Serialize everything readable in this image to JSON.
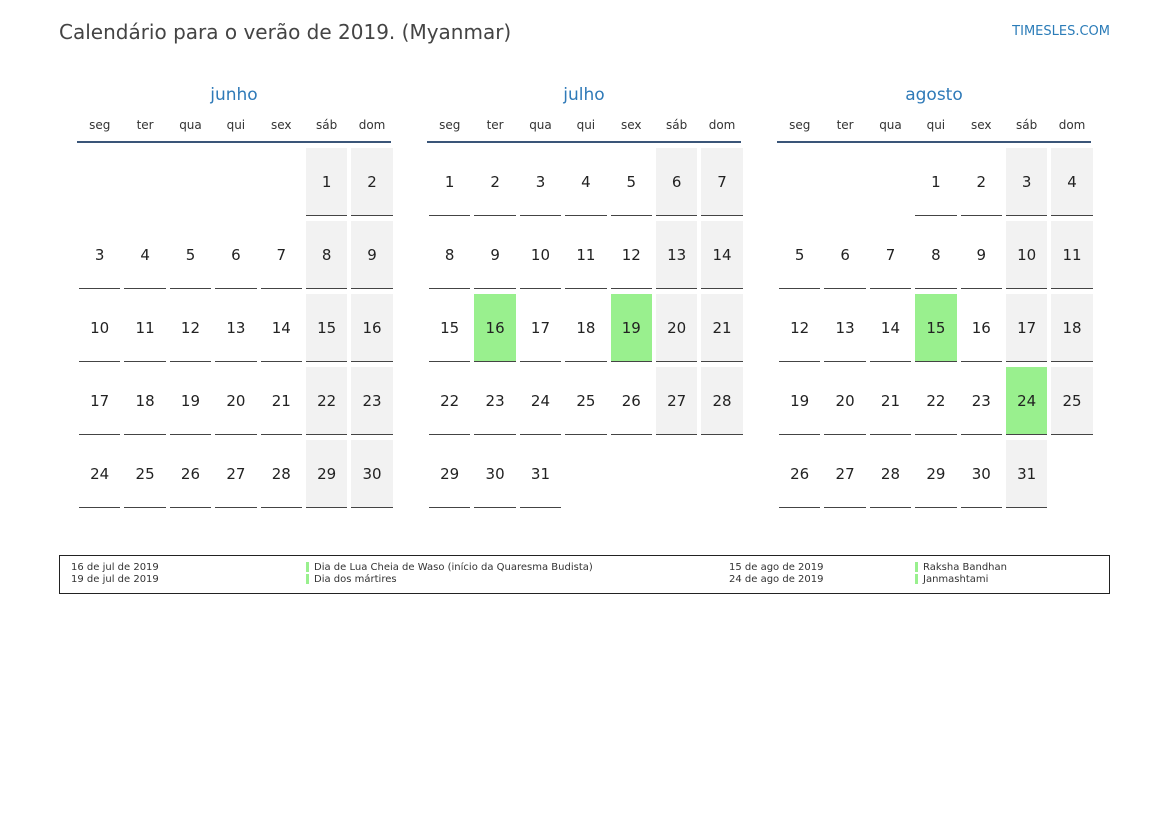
{
  "header": {
    "title": "Calendário para o verão de 2019. (Myanmar)",
    "site": "TIMESLES.COM"
  },
  "weekdays": [
    "seg",
    "ter",
    "qua",
    "qui",
    "sex",
    "sáb",
    "dom"
  ],
  "months": [
    {
      "name": "junho",
      "start_offset": 5,
      "days": 30,
      "holidays": []
    },
    {
      "name": "julho",
      "start_offset": 0,
      "days": 31,
      "holidays": [
        16,
        19
      ]
    },
    {
      "name": "agosto",
      "start_offset": 3,
      "days": 31,
      "holidays": [
        15,
        24
      ]
    }
  ],
  "colors": {
    "holiday": "#99f08e",
    "weekend": "#f2f2f2",
    "month_name": "#2f7ab8"
  },
  "legend": {
    "left": [
      {
        "date": "16 de jul de 2019",
        "name": "Dia de Lua Cheia de Waso (início da Quaresma Budista)"
      },
      {
        "date": "19 de jul de 2019",
        "name": "Dia dos mártires"
      }
    ],
    "right": [
      {
        "date": "15 de ago de 2019",
        "name": "Raksha Bandhan"
      },
      {
        "date": "24 de ago de 2019",
        "name": "Janmashtami"
      }
    ]
  }
}
